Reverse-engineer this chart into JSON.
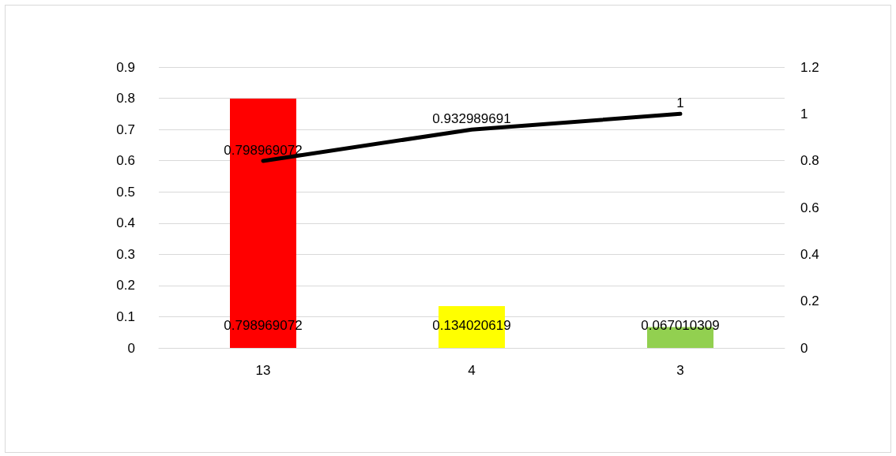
{
  "chart_data": {
    "type": "bar",
    "categories": [
      "13",
      "4",
      "3"
    ],
    "series": [
      {
        "colors": [
          "#ff0000",
          "#ffff00",
          "#92d050"
        ],
        "values": [
          0.798969072,
          0.134020619,
          0.067010309
        ]
      },
      {
        "type": "line",
        "axis": "y2",
        "color": "#000000",
        "values": [
          0.798969072,
          0.932989691,
          1
        ]
      }
    ],
    "ylim": [
      0,
      0.9
    ],
    "yticks": [
      0,
      0.1,
      0.2,
      0.3,
      0.4,
      0.5,
      0.6,
      0.7,
      0.8,
      0.9
    ],
    "y2lim": [
      0,
      1.2
    ],
    "y2ticks": [
      0,
      0.2,
      0.4,
      0.6,
      0.8,
      1,
      1.2
    ],
    "grid": "y",
    "data_labels": true,
    "marker": "none",
    "line_style": "solid"
  }
}
